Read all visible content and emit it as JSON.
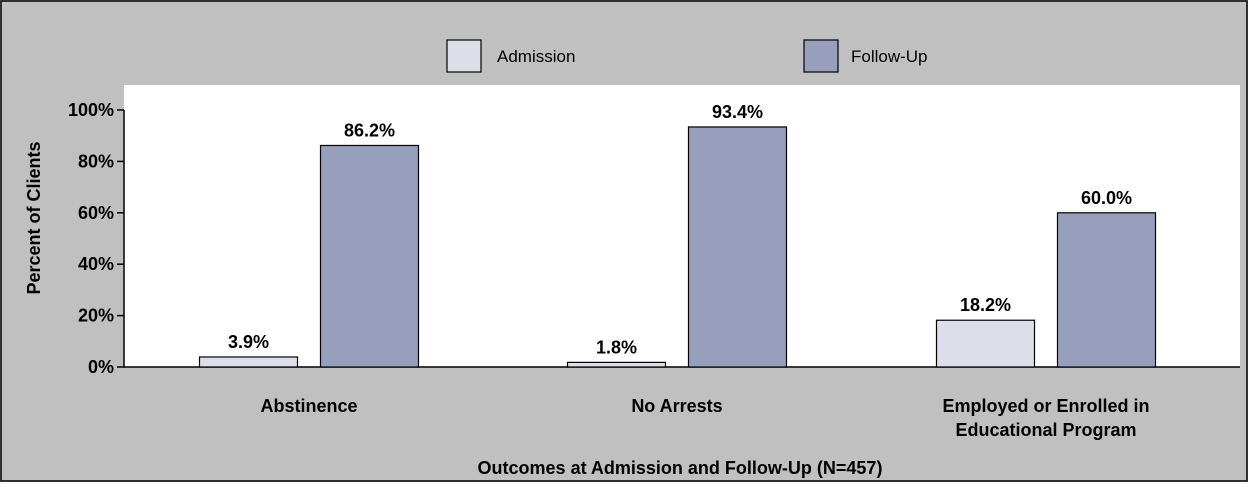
{
  "chart_data": {
    "type": "bar",
    "categories": [
      [
        "Abstinence"
      ],
      [
        "No Arrests"
      ],
      [
        "Employed or Enrolled in",
        "Educational Program"
      ]
    ],
    "series": [
      {
        "name": "Admission",
        "values": [
          3.9,
          1.8,
          18.2
        ],
        "labels": [
          "3.9%",
          "1.8%",
          "18.2%"
        ],
        "color": "#dcdfe9"
      },
      {
        "name": "Follow-Up",
        "values": [
          86.2,
          93.4,
          60.0
        ],
        "labels": [
          "86.2%",
          "93.4%",
          "60.0%"
        ],
        "color": "#979fbd"
      }
    ],
    "title": "",
    "xlabel": "Outcomes at Admission and Follow-Up (N=457)",
    "ylabel": "Percent of Clients",
    "ylim": [
      0,
      100
    ],
    "yticks": [
      0,
      20,
      40,
      60,
      80,
      100
    ],
    "ytick_labels": [
      "0%",
      "20%",
      "40%",
      "60%",
      "80%",
      "100%"
    ],
    "legend_position": "top-center",
    "grid": false,
    "background_color": "#c0c0c0",
    "plot_area_color": "#ffffff"
  }
}
